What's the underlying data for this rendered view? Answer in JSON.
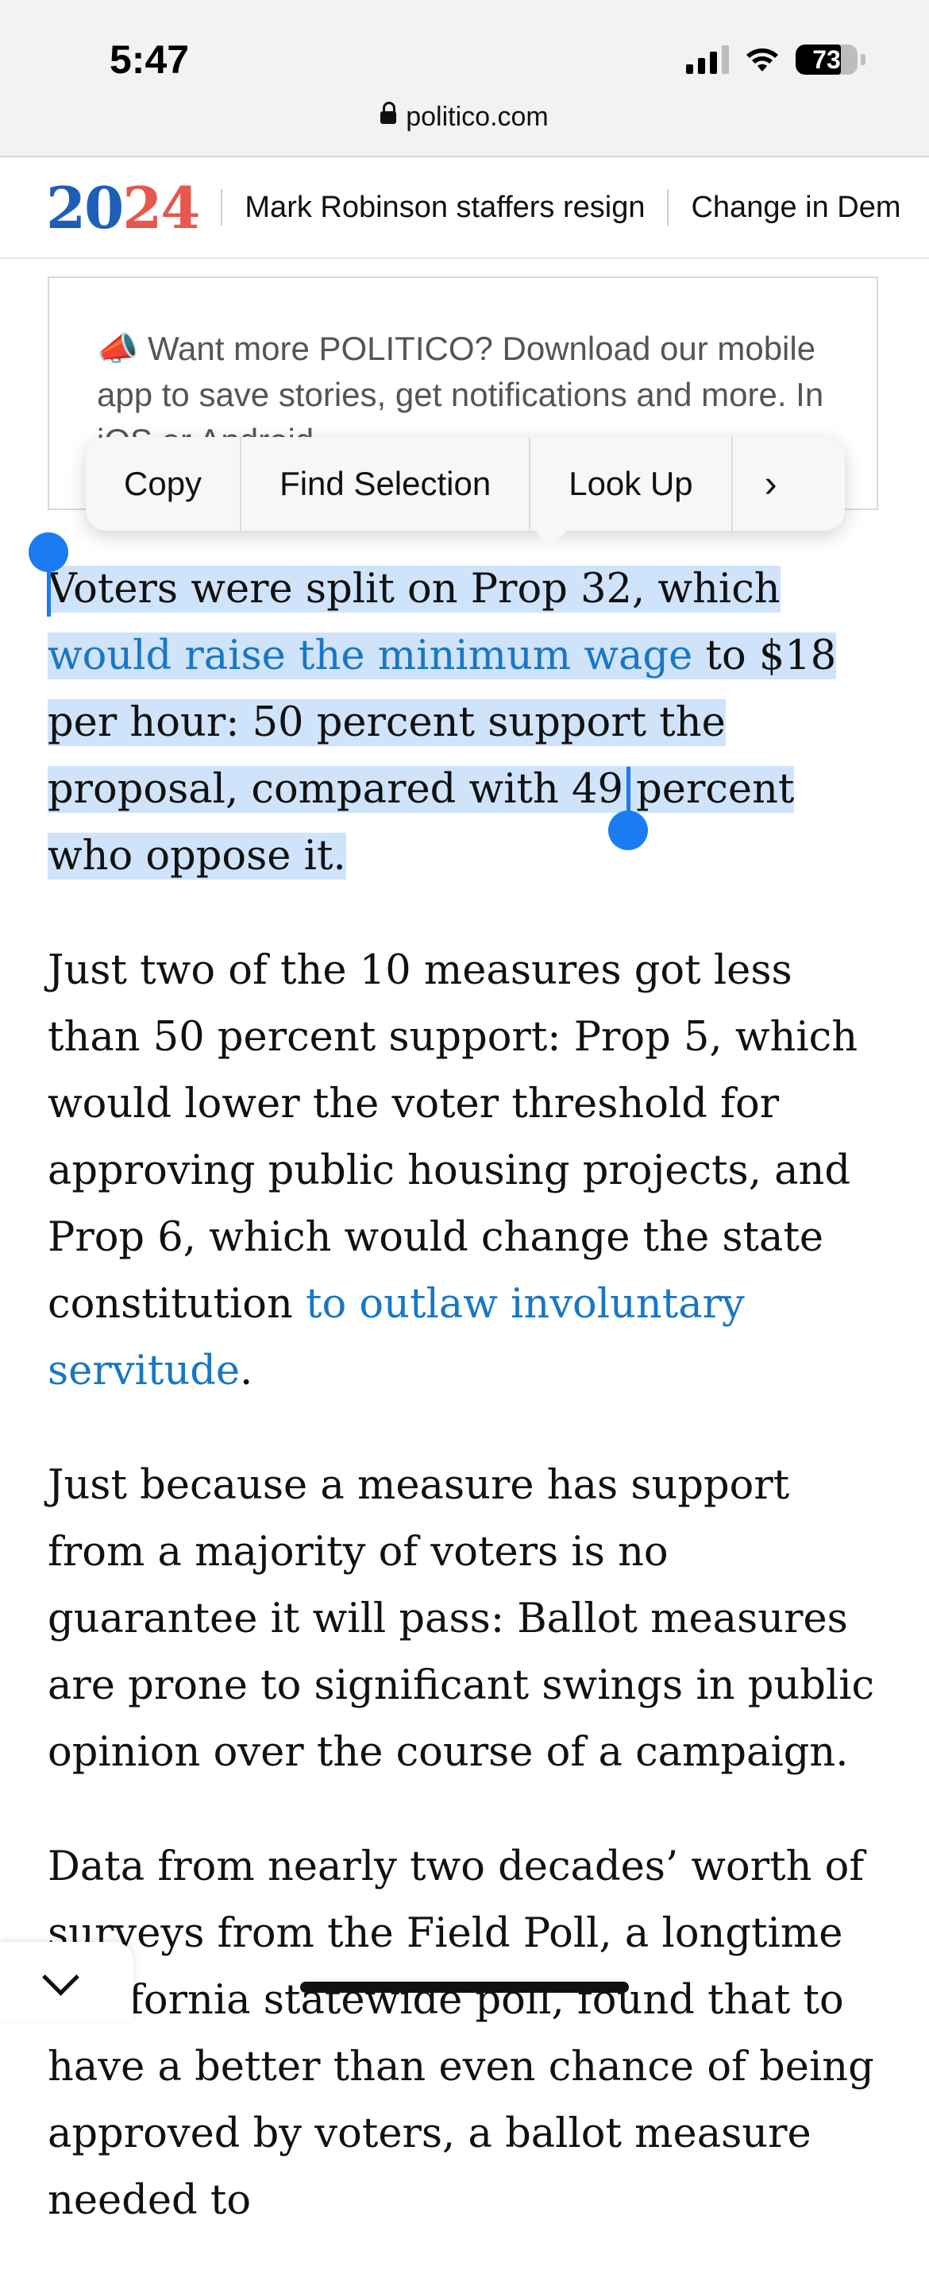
{
  "status_bar": {
    "time": "5:47",
    "battery_level": 73,
    "battery_text": "73"
  },
  "browser": {
    "url": "politico.com"
  },
  "topnav": {
    "logo_year_first": "20",
    "logo_year_second": "24",
    "items": [
      "Mark Robinson staffers resign",
      "Change in Dem"
    ]
  },
  "promo": {
    "text": "Want more POLITICO? Download our mobile app to save stories, get notifications and more. In iOS or Android."
  },
  "context_menu": {
    "items": [
      "Copy",
      "Find Selection",
      "Look Up"
    ],
    "more": "›"
  },
  "article": {
    "p1": {
      "t1": "Voters were split on Prop 32, which ",
      "link1": "would raise the minimum wage",
      "t2": " to $18 per hour: 50 percent support the proposal, compared with 49 percent who oppose it."
    },
    "p2": {
      "t1": "Just two of the 10 measures got less than 50 percent support: Prop 5, which would lower the voter threshold for approving public housing projects, and Prop 6, which would change the state constitution ",
      "link1": "to outlaw involuntary servitude",
      "t2": "."
    },
    "p3": "Just because a measure has support from a majority of voters is no guarantee it will pass: Ballot measures are prone to significant swings in public opinion over the course of a campaign.",
    "p4": "Data from nearly two decades’ worth of surveys from the Field Poll, a longtime California statewide poll, found that to have a better than even chance of being approved by voters, a ballot measure needed to"
  },
  "colors": {
    "link": "#1777c4",
    "selection": "#cfe3fb",
    "handle": "#1b7cf2",
    "logo_blue": "#1d5fb6",
    "logo_red": "#e8574d"
  }
}
